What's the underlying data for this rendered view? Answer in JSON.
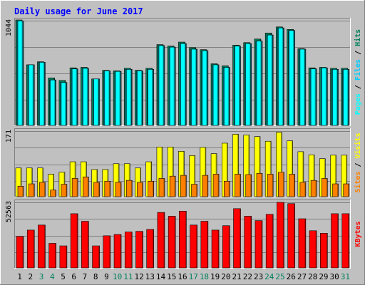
{
  "title": "Daily usage for June 2017",
  "colors": {
    "frame": "#c0c0c0",
    "plot_bg": "#c0c0c0",
    "title": "#0000ff",
    "hits": "#00805c",
    "files": "#00ccff",
    "pages": "#00ffff",
    "visits": "#ffff00",
    "sites": "#ff8000",
    "kbytes": "#ff0000",
    "weekday_label": "#000000",
    "weekend_label": "#00805c"
  },
  "chart_data": [
    {
      "type": "bar",
      "panel": "hits-files-pages",
      "y_max_label": "1044",
      "ylim": [
        0,
        1044
      ],
      "categories": [
        "1",
        "2",
        "3",
        "4",
        "5",
        "6",
        "7",
        "8",
        "9",
        "10",
        "11",
        "12",
        "13",
        "14",
        "15",
        "16",
        "17",
        "18",
        "19",
        "20",
        "21",
        "22",
        "23",
        "24",
        "25",
        "26",
        "27",
        "28",
        "29",
        "30",
        "31"
      ],
      "legend_labels": [
        "Hits",
        "Files",
        "Pages"
      ],
      "series": [
        {
          "name": "Hits",
          "values": [
            1044,
            600,
            630,
            470,
            445,
            570,
            575,
            460,
            545,
            540,
            565,
            545,
            565,
            800,
            785,
            825,
            770,
            750,
            610,
            590,
            795,
            820,
            855,
            915,
            975,
            950,
            760,
            570,
            575,
            565,
            565
          ]
        },
        {
          "name": "Files",
          "values": [
            1035,
            600,
            625,
            450,
            425,
            560,
            565,
            460,
            540,
            535,
            555,
            540,
            555,
            790,
            775,
            810,
            755,
            740,
            600,
            575,
            785,
            810,
            835,
            895,
            965,
            940,
            755,
            560,
            570,
            555,
            555
          ]
        },
        {
          "name": "Pages",
          "values": [
            1035,
            600,
            625,
            450,
            425,
            560,
            565,
            460,
            540,
            535,
            555,
            540,
            555,
            790,
            775,
            810,
            755,
            740,
            600,
            575,
            785,
            810,
            835,
            895,
            965,
            940,
            755,
            560,
            570,
            555,
            555
          ]
        }
      ]
    },
    {
      "type": "bar",
      "panel": "visits-sites",
      "y_max_label": "171",
      "ylim": [
        0,
        171
      ],
      "categories": [
        "1",
        "2",
        "3",
        "4",
        "5",
        "6",
        "7",
        "8",
        "9",
        "10",
        "11",
        "12",
        "13",
        "14",
        "15",
        "16",
        "17",
        "18",
        "19",
        "20",
        "21",
        "22",
        "23",
        "24",
        "25",
        "26",
        "27",
        "28",
        "29",
        "30",
        "31"
      ],
      "legend_labels": [
        "Visits",
        "Sites"
      ],
      "series": [
        {
          "name": "Visits",
          "values": [
            74,
            74,
            74,
            58,
            63,
            90,
            90,
            70,
            70,
            85,
            85,
            74,
            90,
            128,
            128,
            117,
            106,
            127,
            111,
            138,
            161,
            159,
            155,
            143,
            166,
            144,
            116,
            108,
            98,
            107,
            107
          ]
        },
        {
          "name": "Sites",
          "values": [
            27,
            33,
            37,
            17,
            32,
            47,
            51,
            37,
            40,
            37,
            42,
            37,
            40,
            47,
            53,
            55,
            32,
            55,
            58,
            40,
            58,
            57,
            60,
            58,
            63,
            58,
            37,
            42,
            47,
            33,
            33
          ]
        }
      ]
    },
    {
      "type": "bar",
      "panel": "kbytes",
      "y_max_label": "52563",
      "ylim": [
        0,
        52563
      ],
      "categories": [
        "1",
        "2",
        "3",
        "4",
        "5",
        "6",
        "7",
        "8",
        "9",
        "10",
        "11",
        "12",
        "13",
        "14",
        "15",
        "16",
        "17",
        "18",
        "19",
        "20",
        "21",
        "22",
        "23",
        "24",
        "25",
        "26",
        "27",
        "28",
        "29",
        "30",
        "31"
      ],
      "legend_labels": [
        "KBytes"
      ],
      "series": [
        {
          "name": "KBytes",
          "values": [
            25000,
            30000,
            34000,
            19500,
            17500,
            43000,
            37000,
            17500,
            25500,
            26500,
            28500,
            29000,
            30500,
            44000,
            41000,
            45000,
            34000,
            37000,
            30000,
            33500,
            47000,
            41000,
            37500,
            42500,
            52000,
            51000,
            39000,
            29500,
            27500,
            43000,
            43000
          ]
        }
      ]
    }
  ],
  "day_labels": [
    "1",
    "2",
    "3",
    "4",
    "5",
    "6",
    "7",
    "8",
    "9",
    "10",
    "11",
    "12",
    "13",
    "14",
    "15",
    "16",
    "17",
    "18",
    "19",
    "20",
    "21",
    "22",
    "23",
    "24",
    "25",
    "26",
    "27",
    "28",
    "29",
    "30",
    "31"
  ],
  "weekend_days": [
    "3",
    "4",
    "10",
    "11",
    "17",
    "18",
    "24",
    "25",
    "31"
  ]
}
